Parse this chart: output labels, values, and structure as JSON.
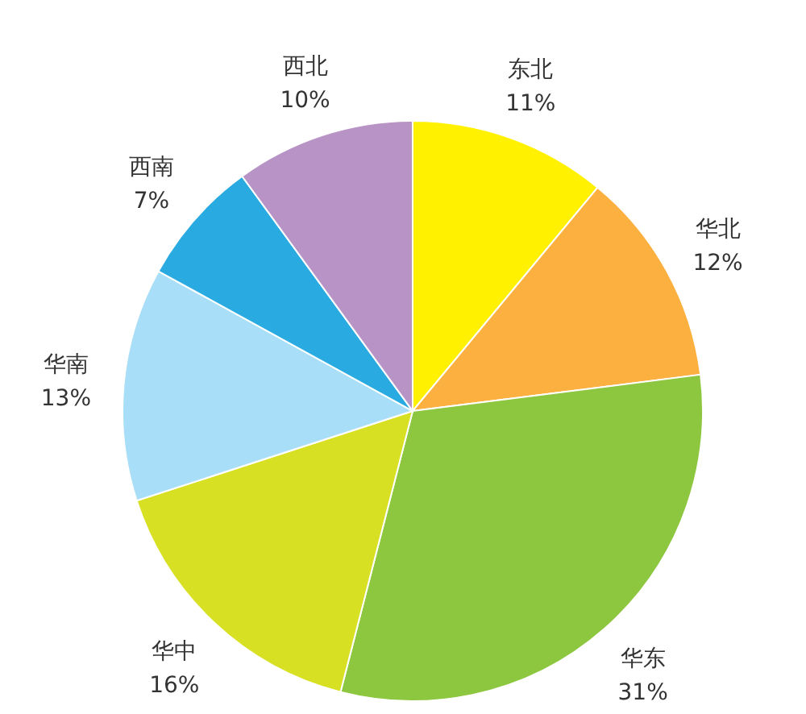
{
  "chart_data": {
    "type": "pie",
    "categories": [
      "东北",
      "华北",
      "华东",
      "华中",
      "华南",
      "西南",
      "西北"
    ],
    "values": [
      11,
      12,
      31,
      16,
      13,
      7,
      10
    ],
    "value_labels": [
      "11%",
      "12%",
      "31%",
      "16%",
      "13%",
      "7%",
      "10%"
    ],
    "colors": [
      "#fff100",
      "#fbb040",
      "#8dc63f",
      "#d7e023",
      "#a8def7",
      "#29abe2",
      "#b893c5"
    ]
  }
}
